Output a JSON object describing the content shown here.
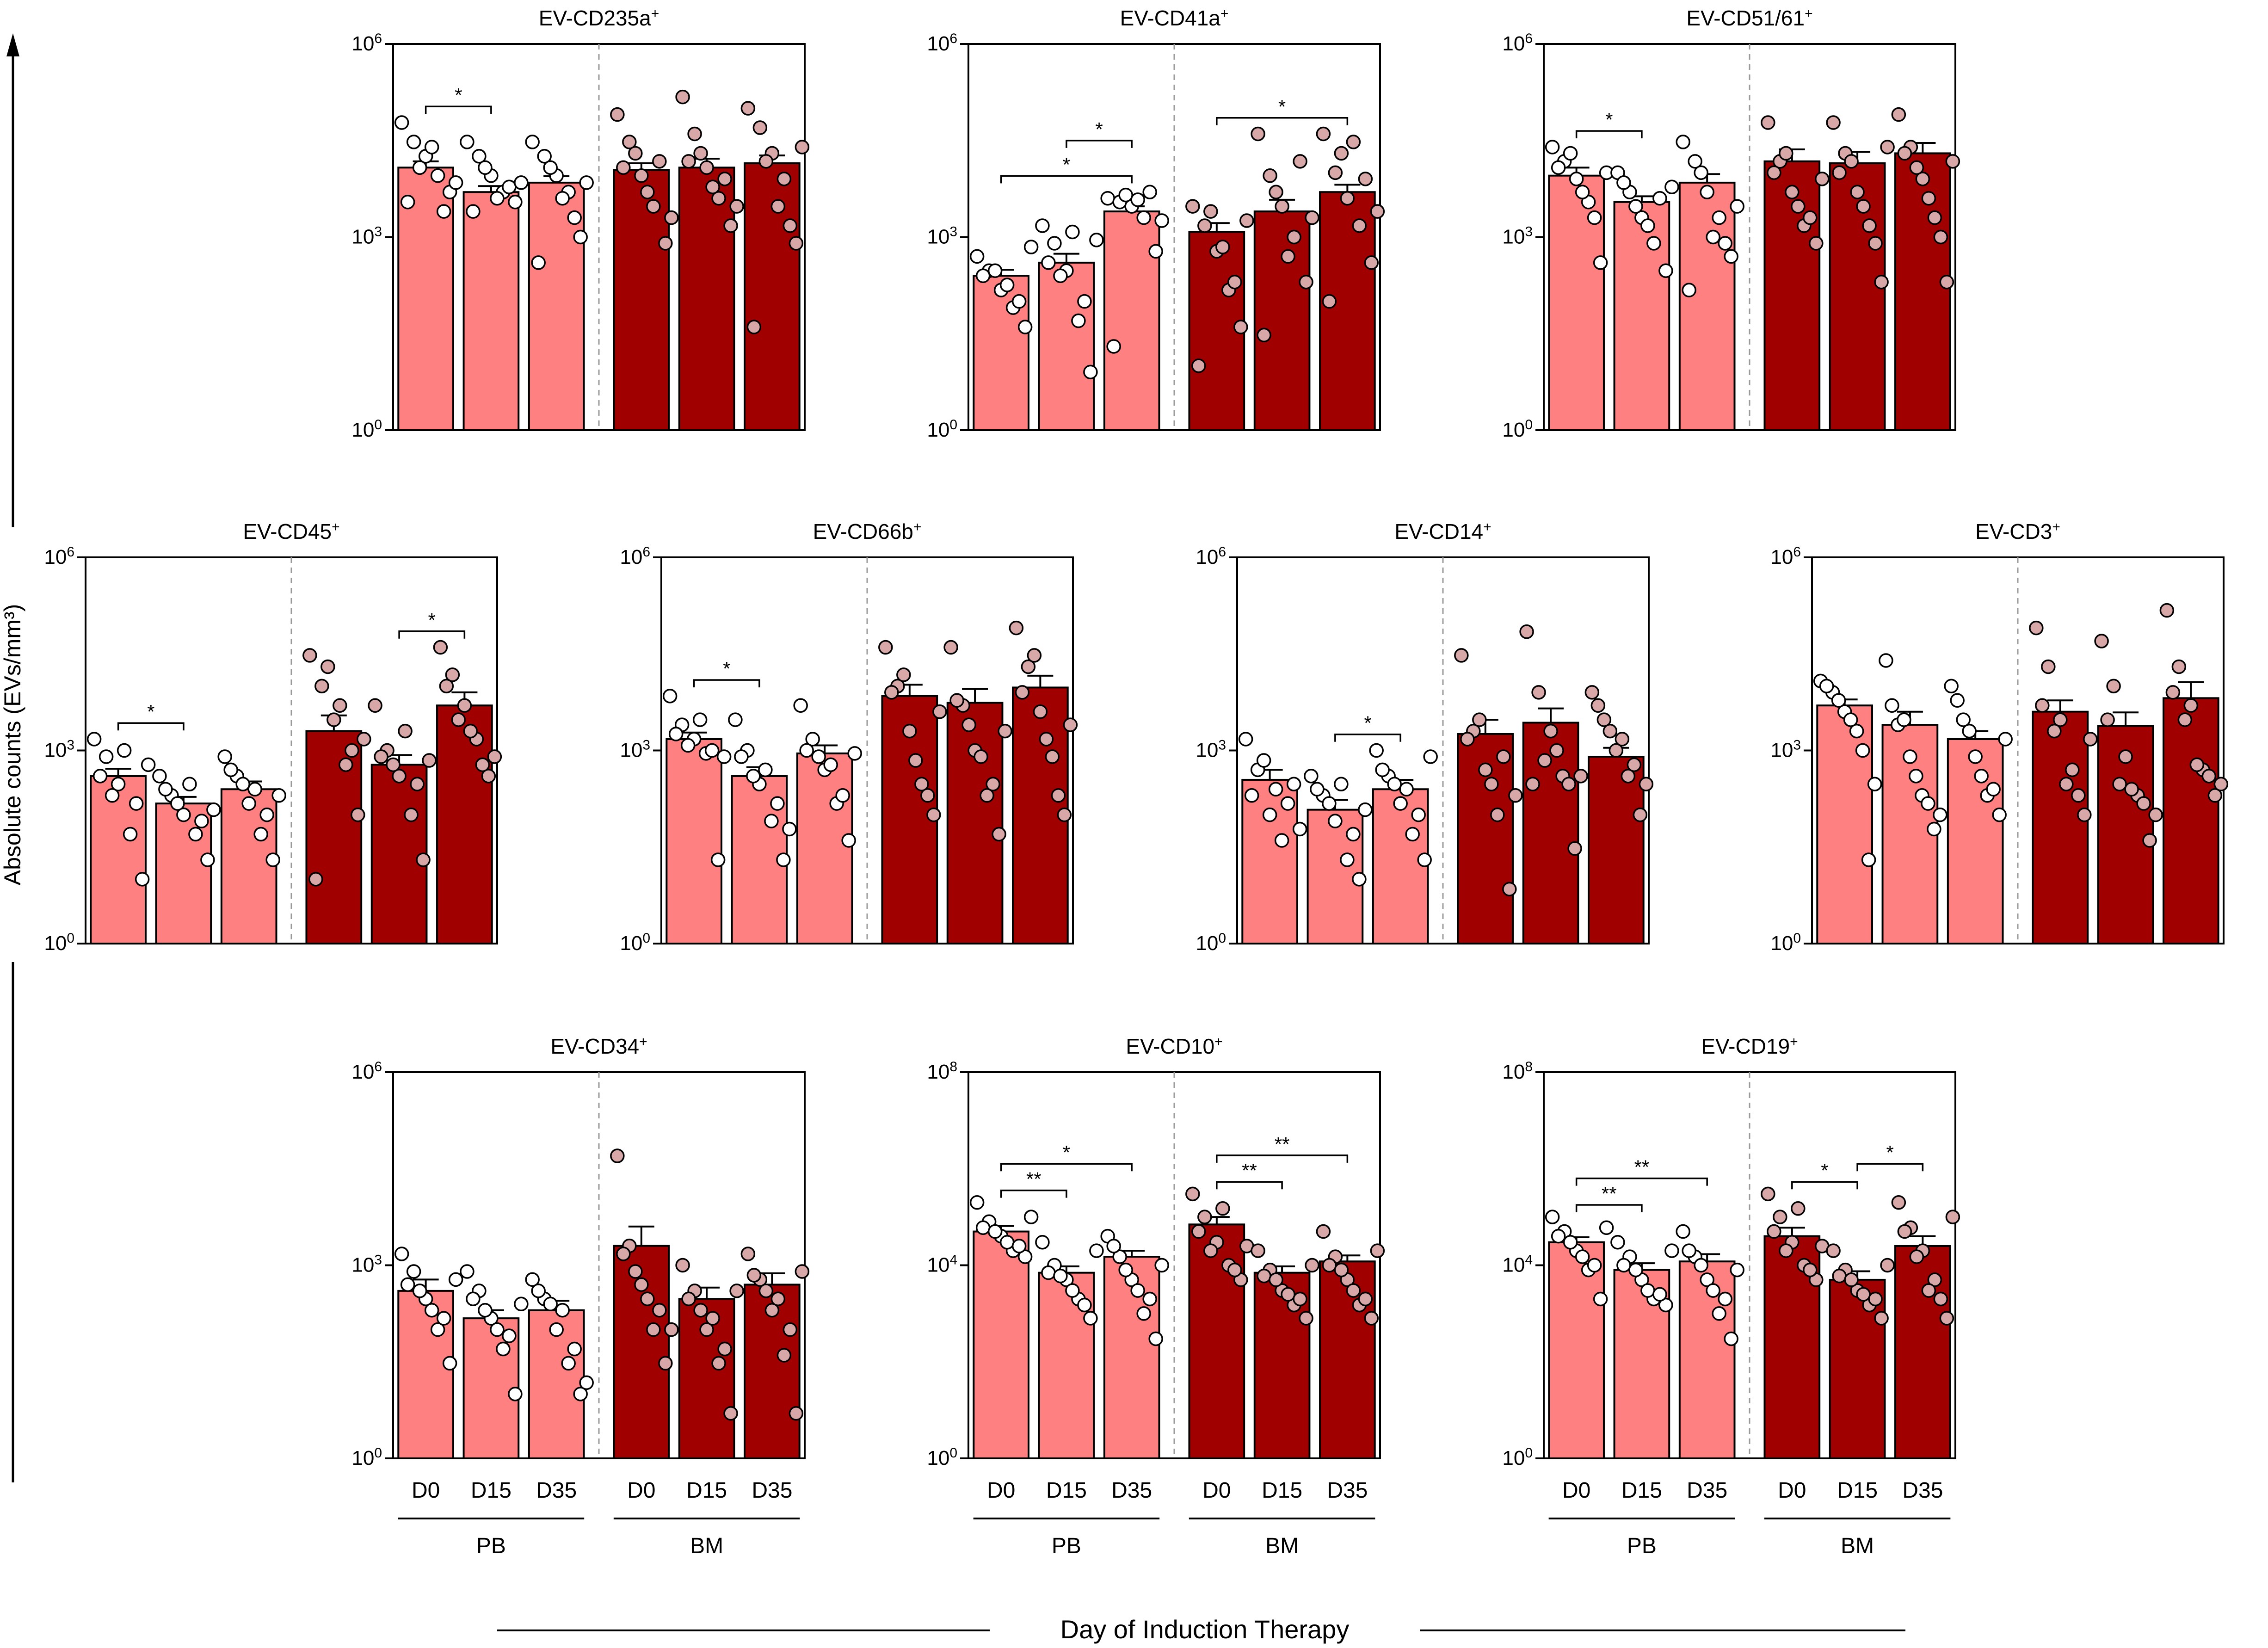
{
  "figure": {
    "y_axis_label": "Absolute counts (EVs/mm³)",
    "x_axis_label": "Day of Induction Therapy",
    "group_labels": [
      "PB",
      "BM"
    ],
    "day_labels": [
      "D0",
      "D15",
      "D35"
    ],
    "colors": {
      "pb_bar": "#ff8080",
      "bm_bar": "#a00000",
      "pb_dot": "#ffffff",
      "bm_dot": "#d8a8a8"
    }
  },
  "chart_data": [
    {
      "type": "bar",
      "title": "EV-CD235a",
      "title_sup": "+",
      "scale": "log10",
      "ymax_exp": 6,
      "ytick_exps": [
        0,
        3,
        6
      ],
      "categories": [
        "PB D0",
        "PB D15",
        "PB D35",
        "BM D0",
        "BM D15",
        "BM D35"
      ],
      "values": [
        12000,
        5000,
        7000,
        11000,
        12000,
        14000
      ],
      "errors": [
        3000,
        1200,
        1800,
        3000,
        4500,
        4500
      ],
      "points": [
        [
          60000,
          30000,
          18000,
          9000,
          5000,
          3500,
          12000,
          25000,
          2500,
          7000
        ],
        [
          30000,
          18000,
          9000,
          5000,
          3500,
          2500,
          12000,
          4000,
          6000,
          7000
        ],
        [
          30000,
          18000,
          9000,
          5000,
          1000,
          400,
          12000,
          4000,
          2000,
          7000
        ],
        [
          80000,
          30000,
          9000,
          3000,
          800,
          12000,
          20000,
          5000,
          15000,
          2000
        ],
        [
          150000,
          40000,
          12000,
          4000,
          1500,
          15000,
          20000,
          6000,
          8000,
          3000
        ],
        [
          100000,
          50000,
          20000,
          8000,
          800,
          40,
          15000,
          3000,
          1500,
          25000
        ]
      ],
      "brackets": [
        {
          "from": 0,
          "to": 1,
          "label": "*"
        }
      ]
    },
    {
      "type": "bar",
      "title": "EV-CD41a",
      "title_sup": "+",
      "scale": "log10",
      "ymax_exp": 6,
      "ytick_exps": [
        0,
        3,
        6
      ],
      "categories": [
        "PB D0",
        "PB D15",
        "PB D35",
        "BM D0",
        "BM D15",
        "BM D35"
      ],
      "values": [
        250,
        400,
        2500,
        1200,
        2500,
        5000
      ],
      "errors": [
        60,
        150,
        500,
        450,
        1300,
        1500
      ],
      "points": [
        [
          500,
          300,
          150,
          80,
          40,
          250,
          300,
          180,
          100,
          700
        ],
        [
          1500,
          800,
          300,
          50,
          8,
          400,
          250,
          1200,
          100,
          900
        ],
        [
          4000,
          3500,
          3000,
          2000,
          600,
          20,
          4500,
          3800,
          5000,
          1800
        ],
        [
          3000,
          1500,
          600,
          150,
          40,
          10,
          2500,
          700,
          200,
          1800
        ],
        [
          40000,
          9000,
          3000,
          1000,
          200,
          30,
          5000,
          500,
          15000,
          2000
        ],
        [
          40000,
          10000,
          4000,
          1500,
          400,
          100,
          20000,
          30000,
          8000,
          2500
        ]
      ],
      "brackets": [
        {
          "from": 0,
          "to": 2,
          "label": "*"
        },
        {
          "from": 1,
          "to": 2,
          "label": "*"
        },
        {
          "from": 3,
          "to": 5,
          "label": "*"
        }
      ]
    },
    {
      "type": "bar",
      "title": "EV-CD51/61",
      "title_sup": "+",
      "scale": "log10",
      "ymax_exp": 6,
      "ytick_exps": [
        0,
        3,
        6
      ],
      "categories": [
        "PB D0",
        "PB D15",
        "PB D35",
        "BM D0",
        "BM D15",
        "BM D35"
      ],
      "values": [
        9000,
        3500,
        7000,
        15000,
        14000,
        20000
      ],
      "errors": [
        3000,
        800,
        2500,
        8000,
        7000,
        9000
      ],
      "points": [
        [
          25000,
          15000,
          8000,
          3500,
          400,
          12000,
          20000,
          5000,
          2000,
          10000
        ],
        [
          10000,
          5000,
          2000,
          800,
          300,
          7000,
          3000,
          1500,
          4000,
          6000
        ],
        [
          30000,
          15000,
          5000,
          2000,
          500,
          150,
          10000,
          1000,
          800,
          3000
        ],
        [
          60000,
          15000,
          5000,
          1500,
          800,
          10000,
          20000,
          3000,
          2000,
          8000
        ],
        [
          60000,
          20000,
          5000,
          1500,
          200,
          10000,
          15000,
          3000,
          800,
          25000
        ],
        [
          80000,
          25000,
          8000,
          2000,
          200,
          20000,
          12000,
          4000,
          1000,
          15000
        ]
      ],
      "brackets": [
        {
          "from": 0,
          "to": 1,
          "label": "*"
        }
      ]
    },
    {
      "type": "bar",
      "title": "EV-CD45",
      "title_sup": "+",
      "scale": "log10",
      "ymax_exp": 6,
      "ytick_exps": [
        0,
        3,
        6
      ],
      "categories": [
        "PB D0",
        "PB D15",
        "PB D35",
        "BM D0",
        "BM D15",
        "BM D35"
      ],
      "values": [
        400,
        150,
        250,
        2000,
        600,
        5000
      ],
      "errors": [
        120,
        40,
        80,
        1500,
        250,
        3000
      ],
      "points": [
        [
          1500,
          800,
          300,
          50,
          10,
          400,
          200,
          1000,
          150,
          600
        ],
        [
          400,
          200,
          100,
          50,
          20,
          250,
          150,
          300,
          80,
          120
        ],
        [
          800,
          400,
          150,
          50,
          20,
          500,
          300,
          250,
          100,
          200
        ],
        [
          30000,
          10000,
          3000,
          600,
          100,
          10,
          20000,
          5000,
          1000,
          1500
        ],
        [
          5000,
          1000,
          400,
          100,
          20,
          800,
          600,
          2000,
          300,
          700
        ],
        [
          40000,
          15000,
          5000,
          1500,
          400,
          10000,
          3000,
          2000,
          600,
          800
        ]
      ],
      "brackets": [
        {
          "from": 0,
          "to": 1,
          "label": "*"
        },
        {
          "from": 4,
          "to": 5,
          "label": "*"
        }
      ]
    },
    {
      "type": "bar",
      "title": "EV-CD66b",
      "title_sup": "+",
      "scale": "log10",
      "ymax_exp": 6,
      "ytick_exps": [
        0,
        3,
        6
      ],
      "categories": [
        "PB D0",
        "PB D15",
        "PB D35",
        "BM D0",
        "BM D15",
        "BM D35"
      ],
      "values": [
        1500,
        400,
        900,
        7000,
        5500,
        9500
      ],
      "errors": [
        400,
        150,
        300,
        3500,
        3500,
        5000
      ],
      "points": [
        [
          7000,
          2500,
          1500,
          900,
          20,
          1800,
          1200,
          3000,
          1000,
          800
        ],
        [
          3000,
          1000,
          300,
          80,
          20,
          800,
          400,
          500,
          150,
          60
        ],
        [
          5000,
          1500,
          500,
          150,
          40,
          1000,
          800,
          600,
          200,
          900
        ],
        [
          40000,
          10000,
          2000,
          300,
          100,
          8000,
          15000,
          700,
          200,
          4000
        ],
        [
          40000,
          5000,
          1000,
          200,
          50,
          6000,
          2500,
          800,
          300,
          2000
        ],
        [
          80000,
          20000,
          4000,
          800,
          100,
          8000,
          30000,
          1500,
          200,
          2500
        ]
      ],
      "brackets": [
        {
          "from": 0,
          "to": 1,
          "label": "*"
        }
      ]
    },
    {
      "type": "bar",
      "title": "EV-CD14",
      "title_sup": "+",
      "scale": "log10",
      "ymax_exp": 6,
      "ytick_exps": [
        0,
        3,
        6
      ],
      "categories": [
        "PB D0",
        "PB D15",
        "PB D35",
        "BM D0",
        "BM D15",
        "BM D35"
      ],
      "values": [
        350,
        120,
        250,
        1800,
        2700,
        800
      ],
      "errors": [
        150,
        50,
        100,
        1200,
        1800,
        300
      ],
      "points": [
        [
          1500,
          500,
          100,
          40,
          300,
          200,
          700,
          250,
          150,
          60
        ],
        [
          400,
          200,
          80,
          20,
          10,
          250,
          150,
          300,
          50,
          120
        ],
        [
          1000,
          400,
          150,
          50,
          20,
          500,
          300,
          250,
          100,
          800
        ],
        [
          30000,
          2000,
          500,
          100,
          7,
          1500,
          3000,
          300,
          800,
          200
        ],
        [
          70000,
          8000,
          2000,
          400,
          30,
          300,
          700,
          1000,
          300,
          400
        ],
        [
          8000,
          3000,
          1000,
          400,
          100,
          5000,
          2000,
          1500,
          600,
          300
        ]
      ],
      "brackets": [
        {
          "from": 1,
          "to": 2,
          "label": "*"
        }
      ]
    },
    {
      "type": "bar",
      "title": "EV-CD3",
      "title_sup": "+",
      "scale": "log10",
      "ymax_exp": 6,
      "ytick_exps": [
        0,
        3,
        6
      ],
      "categories": [
        "PB D0",
        "PB D15",
        "PB D35",
        "BM D0",
        "BM D15",
        "BM D35"
      ],
      "values": [
        5000,
        2500,
        1500,
        4000,
        2400,
        6500
      ],
      "errors": [
        1200,
        1500,
        500,
        2000,
        1500,
        5000
      ],
      "points": [
        [
          12000,
          8000,
          4000,
          2000,
          20,
          10000,
          6000,
          3000,
          1000,
          300
        ],
        [
          25000,
          2500,
          800,
          200,
          60,
          5000,
          3000,
          400,
          150,
          100
        ],
        [
          10000,
          3000,
          800,
          200,
          100,
          6000,
          2000,
          400,
          250,
          1500
        ],
        [
          80000,
          20000,
          3000,
          500,
          100,
          5000,
          2000,
          300,
          200,
          1500
        ],
        [
          50000,
          10000,
          800,
          200,
          40,
          3000,
          300,
          250,
          150,
          100
        ],
        [
          150000,
          20000,
          5000,
          500,
          200,
          8000,
          3000,
          600,
          400,
          300
        ]
      ],
      "brackets": []
    },
    {
      "type": "bar",
      "title": "EV-CD34",
      "title_sup": "+",
      "scale": "log10",
      "ymax_exp": 6,
      "ytick_exps": [
        0,
        3,
        6
      ],
      "categories": [
        "PB D0",
        "PB D15",
        "PB D35",
        "BM D0",
        "BM D15",
        "BM D35"
      ],
      "values": [
        400,
        150,
        200,
        2000,
        300,
        500
      ],
      "errors": [
        200,
        50,
        80,
        2000,
        150,
        250
      ],
      "points": [
        [
          1500,
          800,
          300,
          100,
          30,
          500,
          400,
          200,
          150,
          600
        ],
        [
          800,
          400,
          150,
          50,
          10,
          300,
          200,
          100,
          80,
          250
        ],
        [
          600,
          300,
          100,
          30,
          10,
          400,
          250,
          200,
          50,
          15
        ],
        [
          50000,
          2000,
          500,
          100,
          30,
          1500,
          800,
          300,
          200,
          100
        ],
        [
          1000,
          400,
          100,
          30,
          5,
          300,
          200,
          150,
          50,
          400
        ],
        [
          1500,
          600,
          200,
          40,
          5,
          700,
          400,
          300,
          100,
          800
        ]
      ],
      "brackets": []
    },
    {
      "type": "bar",
      "title": "EV-CD10",
      "title_sup": "+",
      "scale": "log10",
      "ymax_exp": 8,
      "ytick_exps": [
        0,
        4,
        8
      ],
      "categories": [
        "PB D0",
        "PB D15",
        "PB D35",
        "BM D0",
        "BM D15",
        "BM D35"
      ],
      "values": [
        50000,
        7000,
        15000,
        70000,
        7000,
        12000
      ],
      "errors": [
        15000,
        2500,
        5000,
        30000,
        2500,
        4000
      ],
      "points": [
        [
          200000,
          80000,
          40000,
          20000,
          15000,
          60000,
          50000,
          30000,
          25000,
          100000
        ],
        [
          30000,
          10000,
          5000,
          2000,
          800,
          7000,
          6000,
          3000,
          1500,
          20000
        ],
        [
          40000,
          15000,
          5000,
          1000,
          300,
          25000,
          8000,
          3000,
          2000,
          10000
        ],
        [
          300000,
          100000,
          30000,
          10000,
          5000,
          50000,
          20000,
          150000,
          8000,
          25000
        ],
        [
          20000,
          8000,
          3000,
          1500,
          800,
          6000,
          5000,
          2500,
          2000,
          10000
        ],
        [
          50000,
          15000,
          5000,
          1500,
          800,
          10000,
          8000,
          3000,
          2000,
          20000
        ]
      ],
      "brackets": [
        {
          "from": 0,
          "to": 1,
          "label": "**"
        },
        {
          "from": 0,
          "to": 2,
          "label": "*"
        },
        {
          "from": 3,
          "to": 4,
          "label": "**"
        },
        {
          "from": 3,
          "to": 5,
          "label": "**"
        }
      ]
    },
    {
      "type": "bar",
      "title": "EV-CD19",
      "title_sup": "+",
      "scale": "log10",
      "ymax_exp": 8,
      "ytick_exps": [
        0,
        4,
        8
      ],
      "categories": [
        "PB D0",
        "PB D15",
        "PB D35",
        "BM D0",
        "BM D15",
        "BM D35"
      ],
      "values": [
        30000,
        8000,
        12000,
        40000,
        5000,
        25000
      ],
      "errors": [
        8000,
        3000,
        5000,
        20000,
        2500,
        15000
      ],
      "points": [
        [
          100000,
          50000,
          20000,
          8000,
          2000,
          40000,
          30000,
          15000,
          10000,
          60000
        ],
        [
          30000,
          15000,
          5000,
          2000,
          1500,
          10000,
          8000,
          3000,
          2500,
          20000
        ],
        [
          50000,
          15000,
          5000,
          1000,
          300,
          20000,
          10000,
          3000,
          2000,
          8000
        ],
        [
          300000,
          100000,
          30000,
          10000,
          5000,
          50000,
          20000,
          150000,
          8000,
          25000
        ],
        [
          20000,
          8000,
          3000,
          1500,
          800,
          6000,
          5000,
          2500,
          2000,
          10000
        ],
        [
          200000,
          60000,
          20000,
          5000,
          800,
          50000,
          15000,
          3000,
          2000,
          100000
        ]
      ],
      "brackets": [
        {
          "from": 0,
          "to": 1,
          "label": "**"
        },
        {
          "from": 0,
          "to": 2,
          "label": "**"
        },
        {
          "from": 3,
          "to": 4,
          "label": "*"
        },
        {
          "from": 4,
          "to": 5,
          "label": "*"
        }
      ]
    }
  ]
}
